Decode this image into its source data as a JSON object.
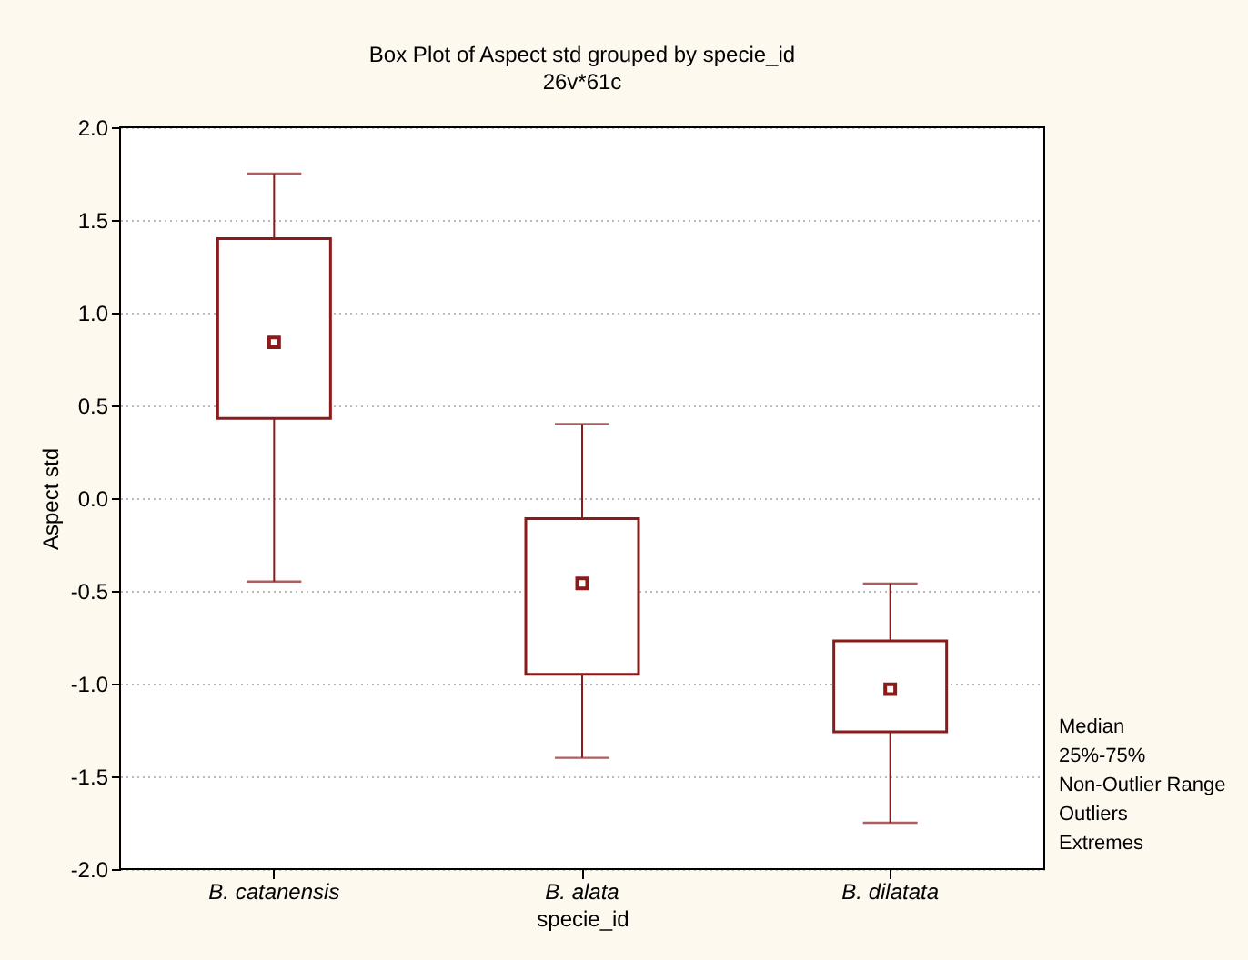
{
  "chart_data": {
    "type": "box",
    "title": "Box Plot of Aspect std grouped by  specie_id",
    "subtitle": "26v*61c",
    "xlabel": "specie_id",
    "ylabel": "Aspect std",
    "categories": [
      "B. catanensis",
      "B. alata",
      "B. dilatata"
    ],
    "color": "#8b1a1a",
    "boxes": [
      {
        "low": -0.45,
        "q1": 0.43,
        "median": 0.84,
        "q3": 1.4,
        "high": 1.75
      },
      {
        "low": -1.4,
        "q1": -0.95,
        "median": -0.46,
        "q3": -0.11,
        "high": 0.4
      },
      {
        "low": -1.75,
        "q1": -1.26,
        "median": -1.03,
        "q3": -0.77,
        "high": -0.46
      }
    ],
    "ylim": [
      -2.0,
      2.0
    ],
    "yticks": [
      {
        "value": -2,
        "label": "-2.0"
      },
      {
        "value": -1.5,
        "label": "-1.5"
      },
      {
        "value": -1,
        "label": "-1.0"
      },
      {
        "value": -0.5,
        "label": "-0.5"
      },
      {
        "value": 0,
        "label": "0.0"
      },
      {
        "value": 0.5,
        "label": "0.5"
      },
      {
        "value": 1,
        "label": "1.0"
      },
      {
        "value": 1.5,
        "label": "1.5"
      },
      {
        "value": 2,
        "label": "2.0"
      }
    ],
    "grid": "y",
    "annotations": [
      "Median",
      "25%-75%",
      "Non-Outlier Range",
      "Outliers",
      "Extremes"
    ]
  }
}
